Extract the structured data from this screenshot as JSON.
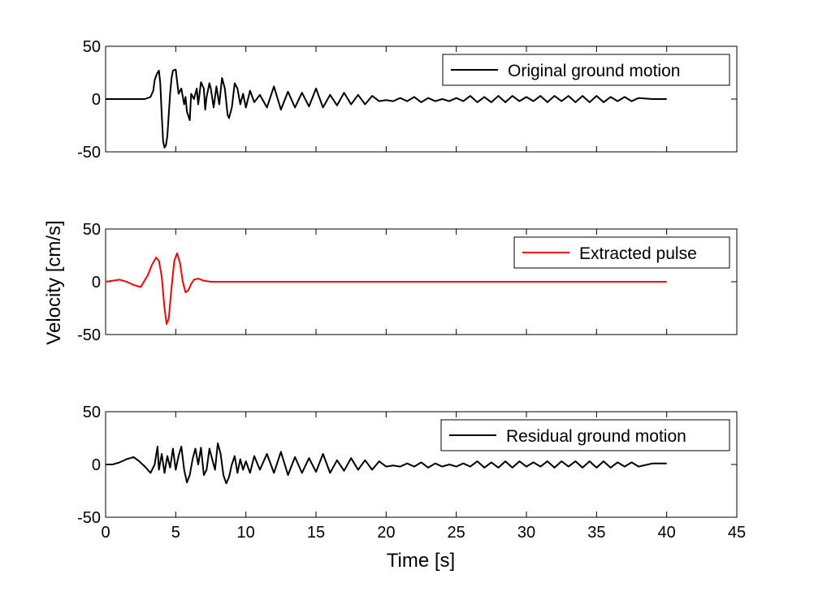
{
  "figure": {
    "ylabel": "Velocity [cm/s]",
    "xlabel": "Time [s]"
  },
  "chart_data": [
    {
      "type": "line",
      "xlim": [
        0,
        45
      ],
      "ylim": [
        -50,
        50
      ],
      "xticks": [
        0,
        5,
        10,
        15,
        20,
        25,
        30,
        35,
        40,
        45
      ],
      "yticks": [
        -50,
        0,
        50
      ],
      "x_tick_labels_visible": false,
      "grid": false,
      "legend_position": "top-right",
      "series": [
        {
          "name": "Original ground motion",
          "color": "#000000",
          "x": [
            0,
            2,
            2.8,
            3.2,
            3.4,
            3.5,
            3.6,
            3.7,
            3.8,
            3.9,
            4.0,
            4.1,
            4.2,
            4.3,
            4.4,
            4.5,
            4.6,
            4.7,
            4.8,
            5.0,
            5.2,
            5.4,
            5.6,
            5.7,
            5.8,
            6.0,
            6.1,
            6.3,
            6.5,
            6.6,
            6.8,
            7.0,
            7.1,
            7.2,
            7.4,
            7.5,
            7.7,
            7.9,
            8.1,
            8.3,
            8.5,
            8.7,
            8.8,
            9.0,
            9.2,
            9.4,
            9.6,
            9.8,
            10.0,
            10.3,
            10.6,
            11.0,
            11.5,
            12.0,
            12.5,
            13.0,
            13.5,
            14.0,
            14.5,
            15.0,
            15.5,
            16.0,
            16.5,
            17.0,
            17.5,
            18.0,
            18.5,
            19.0,
            19.5,
            20.0,
            20.5,
            21.0,
            21.5,
            22.0,
            22.5,
            23.0,
            23.5,
            24.0,
            24.5,
            25.0,
            25.5,
            26.0,
            26.5,
            27.0,
            27.5,
            28.0,
            28.5,
            29.0,
            29.5,
            30.0,
            30.5,
            31.0,
            31.5,
            32.0,
            32.5,
            33.0,
            33.5,
            34.0,
            34.5,
            35.0,
            35.5,
            36.0,
            36.5,
            37.0,
            37.5,
            38.0,
            39.0,
            40.0
          ],
          "y": [
            0,
            0,
            0,
            2,
            8,
            18,
            22,
            25,
            27,
            15,
            -15,
            -40,
            -46,
            -44,
            -35,
            -15,
            5,
            20,
            27,
            28,
            5,
            10,
            -5,
            2,
            -12,
            -20,
            5,
            0,
            10,
            -5,
            16,
            10,
            -10,
            2,
            15,
            10,
            -8,
            12,
            -5,
            20,
            10,
            -15,
            -18,
            -8,
            15,
            10,
            -5,
            5,
            -8,
            8,
            -3,
            4,
            -8,
            12,
            -10,
            7,
            -8,
            6,
            -7,
            10,
            -8,
            4,
            -6,
            6,
            -5,
            4,
            -5,
            3,
            -2,
            -1,
            -2,
            1,
            -2,
            2,
            -3,
            1,
            -2,
            0,
            -2,
            1,
            -2,
            3,
            -3,
            2,
            -3,
            3,
            -3,
            3,
            -2,
            2,
            -2,
            3,
            -3,
            3,
            -2,
            3,
            -3,
            3,
            -3,
            3,
            -3,
            2,
            -2,
            2,
            -2,
            1,
            0,
            0
          ]
        }
      ]
    },
    {
      "type": "line",
      "xlim": [
        0,
        45
      ],
      "ylim": [
        -50,
        50
      ],
      "xticks": [
        0,
        5,
        10,
        15,
        20,
        25,
        30,
        35,
        40,
        45
      ],
      "yticks": [
        -50,
        0,
        50
      ],
      "x_tick_labels_visible": false,
      "grid": false,
      "legend_position": "top-right",
      "series": [
        {
          "name": "Extracted pulse",
          "color": "#ff0000",
          "x": [
            0,
            0.5,
            1.0,
            1.5,
            2.0,
            2.5,
            3.0,
            3.3,
            3.6,
            3.8,
            4.0,
            4.2,
            4.35,
            4.5,
            4.7,
            4.9,
            5.1,
            5.3,
            5.5,
            5.7,
            5.9,
            6.1,
            6.3,
            6.6,
            7.0,
            7.5,
            8.0,
            8.5,
            9.0,
            10.0,
            40.0
          ],
          "y": [
            0,
            1,
            2,
            0,
            -3,
            -5,
            6,
            16,
            23,
            20,
            5,
            -25,
            -40,
            -35,
            -5,
            20,
            27,
            18,
            0,
            -10,
            -8,
            -2,
            2,
            3,
            1,
            0,
            0,
            0,
            0,
            0,
            0
          ]
        }
      ]
    },
    {
      "type": "line",
      "xlim": [
        0,
        45
      ],
      "ylim": [
        -50,
        50
      ],
      "xticks": [
        0,
        5,
        10,
        15,
        20,
        25,
        30,
        35,
        40,
        45
      ],
      "yticks": [
        -50,
        0,
        50
      ],
      "x_tick_labels_visible": true,
      "grid": false,
      "legend_position": "top-right",
      "series": [
        {
          "name": "Residual ground motion",
          "color": "#000000",
          "x": [
            0,
            0.5,
            1.0,
            1.5,
            2.0,
            2.4,
            2.8,
            3.2,
            3.5,
            3.7,
            3.8,
            4.0,
            4.2,
            4.4,
            4.6,
            4.8,
            5.0,
            5.2,
            5.4,
            5.6,
            5.8,
            6.0,
            6.2,
            6.4,
            6.6,
            6.8,
            7.0,
            7.2,
            7.4,
            7.6,
            7.8,
            8.0,
            8.2,
            8.4,
            8.6,
            8.8,
            9.0,
            9.2,
            9.4,
            9.6,
            9.8,
            10.0,
            10.3,
            10.6,
            11.0,
            11.5,
            12.0,
            12.5,
            13.0,
            13.5,
            14.0,
            14.5,
            15.0,
            15.5,
            16.0,
            16.5,
            17.0,
            17.5,
            18.0,
            18.5,
            19.0,
            19.5,
            20.0,
            20.5,
            21.0,
            21.5,
            22.0,
            22.5,
            23.0,
            23.5,
            24.0,
            24.5,
            25.0,
            25.5,
            26.0,
            26.5,
            27.0,
            27.5,
            28.0,
            28.5,
            29.0,
            29.5,
            30.0,
            30.5,
            31.0,
            31.5,
            32.0,
            32.5,
            33.0,
            33.5,
            34.0,
            34.5,
            35.0,
            35.5,
            36.0,
            36.5,
            37.0,
            37.5,
            38.0,
            39.0,
            40.0
          ],
          "y": [
            0,
            0,
            2,
            5,
            7,
            3,
            -2,
            -8,
            0,
            17,
            -5,
            10,
            -8,
            8,
            -3,
            15,
            -5,
            8,
            17,
            -5,
            -17,
            -10,
            5,
            15,
            0,
            16,
            -10,
            -5,
            15,
            5,
            -5,
            20,
            10,
            -10,
            -18,
            -12,
            0,
            8,
            -8,
            5,
            -5,
            3,
            -8,
            8,
            -5,
            10,
            -8,
            12,
            -10,
            7,
            -8,
            6,
            -7,
            10,
            -8,
            4,
            -6,
            6,
            -5,
            4,
            -5,
            3,
            -2,
            -1,
            -2,
            1,
            -2,
            2,
            -3,
            1,
            -2,
            0,
            -2,
            1,
            -2,
            3,
            -3,
            2,
            -3,
            3,
            -3,
            3,
            -2,
            2,
            -2,
            3,
            -3,
            3,
            -2,
            3,
            -3,
            3,
            -3,
            3,
            -3,
            2,
            -2,
            2,
            -2,
            1,
            1
          ]
        }
      ]
    }
  ]
}
